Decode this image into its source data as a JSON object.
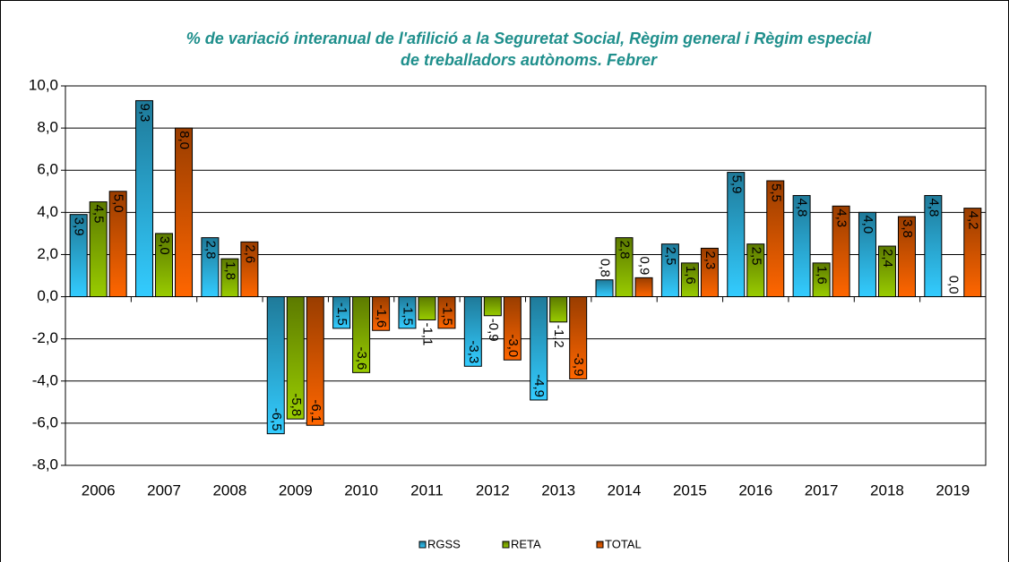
{
  "chart_data": {
    "type": "bar",
    "title": [
      "% de variació interanual de l'afilició a la Seguretat Social, Règim general i Règim especial",
      "de treballadors autònoms. Febrer"
    ],
    "categories": [
      "2006",
      "2007",
      "2008",
      "2009",
      "2010",
      "2011",
      "2012",
      "2013",
      "2014",
      "2015",
      "2016",
      "2017",
      "2018",
      "2019"
    ],
    "series": [
      {
        "name": "RGSS",
        "color": "#33ccff",
        "values": [
          3.9,
          9.3,
          2.8,
          -6.5,
          -1.5,
          -1.5,
          -3.3,
          -4.9,
          0.8,
          2.5,
          5.9,
          4.8,
          4.0,
          4.8
        ],
        "value_labels": [
          "3,9",
          "9,3",
          "2,8",
          "-6,5",
          "-1,5",
          "-1,5",
          "-3,3",
          "-4,9",
          "0,8",
          "2,5",
          "5,9",
          "4,8",
          "4,0",
          "4,8"
        ]
      },
      {
        "name": "RETA",
        "color": "#99cc00",
        "values": [
          4.5,
          3.0,
          1.8,
          -5.8,
          -3.6,
          -1.1,
          -0.9,
          -1.2,
          2.8,
          1.6,
          2.5,
          1.6,
          2.4,
          0.0
        ],
        "value_labels": [
          "4,5",
          "3,0",
          "1,8",
          "-5,8",
          "-3,6",
          "-1,1",
          "-0,9",
          "-1,2",
          "2,8",
          "1,6",
          "2,5",
          "1,6",
          "2,4",
          "0,0"
        ]
      },
      {
        "name": "TOTAL",
        "color": "#ff6600",
        "values": [
          5.0,
          8.0,
          2.6,
          -6.1,
          -1.6,
          -1.5,
          -3.0,
          -3.9,
          0.9,
          2.3,
          5.5,
          4.3,
          3.8,
          4.2
        ],
        "value_labels": [
          "5,0",
          "8,0",
          "2,6",
          "-6,1",
          "-1,6",
          "-1,5",
          "-3,0",
          "-3,9",
          "0,9",
          "2,3",
          "5,5",
          "4,3",
          "3,8",
          "4,2"
        ]
      }
    ],
    "ylim": [
      -8,
      10
    ],
    "yticks": [
      {
        "value": -8,
        "label": "-8,0"
      },
      {
        "value": -6,
        "label": "-6,0"
      },
      {
        "value": -4,
        "label": "-4,0"
      },
      {
        "value": -2,
        "label": "-2,0"
      },
      {
        "value": 0,
        "label": "0,0"
      },
      {
        "value": 2,
        "label": "2,0"
      },
      {
        "value": 4,
        "label": "4,0"
      },
      {
        "value": 6,
        "label": "6,0"
      },
      {
        "value": 8,
        "label": "8,0"
      },
      {
        "value": 10,
        "label": "10,0"
      }
    ],
    "grid": true,
    "legend": "bottom"
  }
}
